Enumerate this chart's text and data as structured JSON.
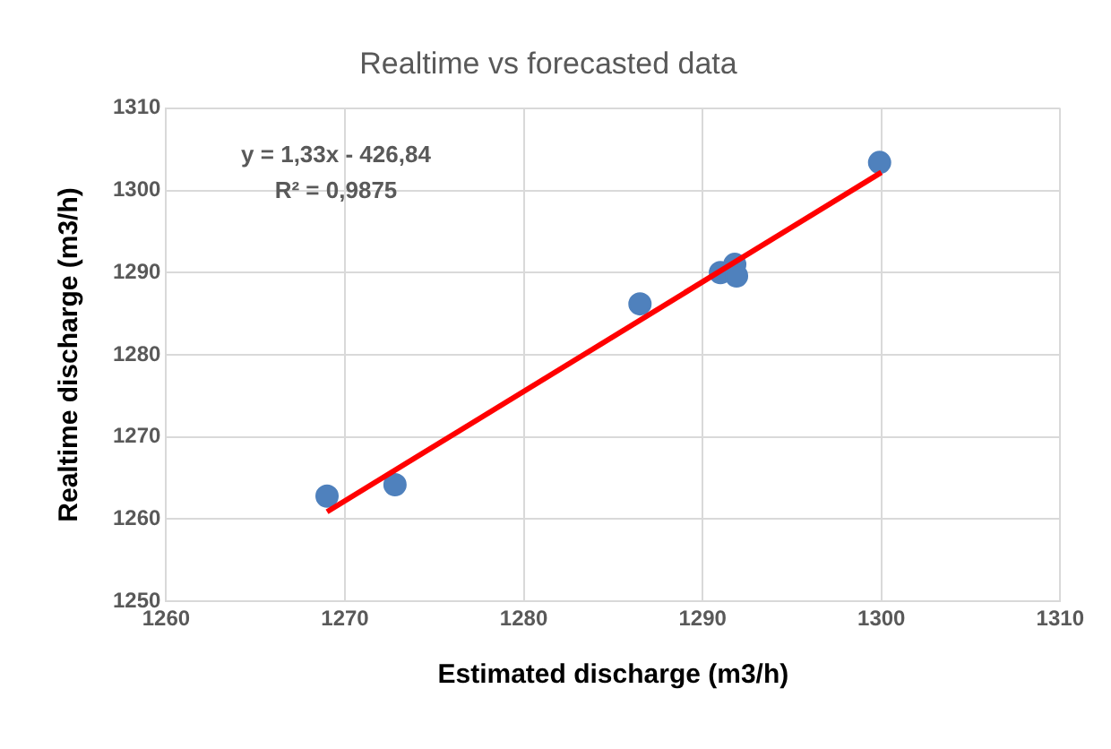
{
  "chart_data": {
    "type": "scatter",
    "title": "Realtime vs forecasted data",
    "xlabel": "Estimated discharge (m3/h)",
    "ylabel": "Realtime discharge (m3/h)",
    "series": [
      {
        "type": "scatter",
        "color": "#4f81bd",
        "x": [
          1269,
          1272.8,
          1286.5,
          1291,
          1291.8,
          1291.9,
          1299.9
        ],
        "values": [
          1262.8,
          1264.2,
          1286.2,
          1290,
          1291,
          1289.6,
          1303.4
        ],
        "marker": "circle"
      },
      {
        "type": "line",
        "color": "#ff0000",
        "x": [
          1269,
          1300
        ],
        "values": [
          1260.9,
          1302.2
        ],
        "marker": "none",
        "line_style": "solid"
      }
    ],
    "annotations": [
      "y = 1,33x - 426,84",
      "R² = 0,9875"
    ],
    "xlim": [
      1260,
      1310
    ],
    "xticks": [
      1260,
      1270,
      1280,
      1290,
      1300,
      1310
    ],
    "ylim": [
      1250,
      1310
    ],
    "yticks": [
      1250,
      1260,
      1270,
      1280,
      1290,
      1300,
      1310
    ],
    "grid": true,
    "legend": false
  }
}
